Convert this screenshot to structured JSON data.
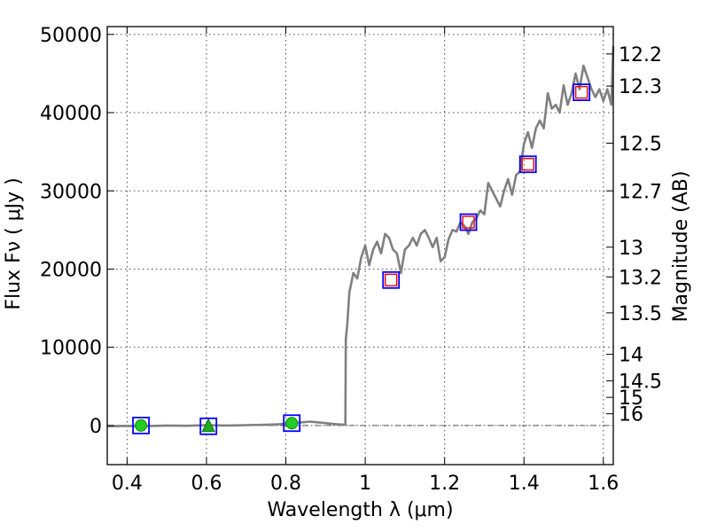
{
  "chart_data": {
    "type": "line",
    "xlabel": "Wavelength  λ (μm)",
    "ylabel": "Flux  Fν  ( μJy )",
    "y2label": "Magnitude (AB)",
    "xlim": [
      0.35,
      1.625
    ],
    "ylim": [
      -5000,
      51000
    ],
    "grid": true,
    "x_ticks": [
      0.4,
      0.6,
      0.8,
      1.0,
      1.2,
      1.4,
      1.6
    ],
    "x_tick_labels": [
      "0.4",
      "0.6",
      "0.8",
      "1",
      "1.2",
      "1.4",
      "1.6"
    ],
    "y_ticks": [
      0,
      10000,
      20000,
      30000,
      40000,
      50000
    ],
    "y_tick_labels": [
      "0",
      "10000",
      "20000",
      "30000",
      "40000",
      "50000"
    ],
    "y2_ticks": [
      {
        "label": "12.2",
        "flux": 47500
      },
      {
        "label": "12.3",
        "flux": 43400
      },
      {
        "label": "12.5",
        "flux": 36100
      },
      {
        "label": "12.7",
        "flux": 30000
      },
      {
        "label": "13",
        "flux": 22800
      },
      {
        "label": "13.2",
        "flux": 19000
      },
      {
        "label": "13.5",
        "flux": 14400
      },
      {
        "label": "14",
        "flux": 9100
      },
      {
        "label": "14.5",
        "flux": 5700
      },
      {
        "label": "15",
        "flux": 3600
      },
      {
        "label": "16",
        "flux": 1500
      }
    ],
    "series": [
      {
        "kind": "spectrum",
        "color": "#808080",
        "x": [
          0.35,
          0.4,
          0.45,
          0.5,
          0.55,
          0.6,
          0.65,
          0.7,
          0.75,
          0.78,
          0.82,
          0.86,
          0.9,
          0.93,
          0.95,
          0.951,
          0.955,
          0.96,
          0.97,
          0.98,
          0.99,
          1.0,
          1.01,
          1.02,
          1.03,
          1.04,
          1.05,
          1.06,
          1.07,
          1.08,
          1.09,
          1.1,
          1.11,
          1.12,
          1.13,
          1.14,
          1.15,
          1.16,
          1.17,
          1.18,
          1.19,
          1.2,
          1.21,
          1.22,
          1.23,
          1.24,
          1.25,
          1.26,
          1.27,
          1.28,
          1.29,
          1.3,
          1.31,
          1.32,
          1.33,
          1.34,
          1.35,
          1.36,
          1.37,
          1.38,
          1.39,
          1.4,
          1.41,
          1.42,
          1.43,
          1.44,
          1.45,
          1.46,
          1.47,
          1.48,
          1.49,
          1.5,
          1.51,
          1.52,
          1.53,
          1.54,
          1.55,
          1.56,
          1.57,
          1.58,
          1.59,
          1.6,
          1.61,
          1.62,
          1.625
        ],
        "y": [
          -100,
          -50,
          -80,
          0,
          -30,
          50,
          0,
          50,
          100,
          150,
          300,
          500,
          300,
          150,
          100,
          11000,
          13000,
          17000,
          19500,
          18800,
          21500,
          23000,
          20500,
          22500,
          23500,
          22000,
          24500,
          24000,
          22500,
          22000,
          19500,
          22500,
          23000,
          24000,
          23000,
          24500,
          25000,
          24000,
          22800,
          24000,
          21000,
          21500,
          23800,
          25000,
          24800,
          26000,
          25500,
          24500,
          26000,
          26500,
          27500,
          27000,
          31000,
          30000,
          29000,
          28000,
          30000,
          31500,
          29500,
          32000,
          32500,
          36000,
          37500,
          35500,
          38000,
          39000,
          38000,
          42500,
          40500,
          41000,
          40000,
          43500,
          41000,
          42500,
          45000,
          43000,
          46000,
          44500,
          43000,
          42000,
          43000,
          41500,
          43000,
          41000,
          48500
        ]
      },
      {
        "kind": "photometry",
        "points": [
          {
            "x": 0.435,
            "y": 0,
            "marker": "circle",
            "color": "#22cc22"
          },
          {
            "x": 0.605,
            "y": -100,
            "marker": "triangle",
            "color": "#22aa22"
          },
          {
            "x": 0.815,
            "y": 300,
            "marker": "circle",
            "color": "#22cc22"
          }
        ]
      },
      {
        "kind": "model-photometry",
        "marker": "open-square",
        "color": "#ff0000",
        "points": [
          {
            "x": 1.065,
            "y": 18600
          },
          {
            "x": 1.26,
            "y": 26000
          },
          {
            "x": 1.41,
            "y": 33400
          },
          {
            "x": 1.545,
            "y": 42600
          }
        ]
      },
      {
        "kind": "box-markers",
        "marker": "open-square",
        "color": "#0000ff",
        "points": [
          {
            "x": 0.435,
            "y": 0
          },
          {
            "x": 0.605,
            "y": -100
          },
          {
            "x": 0.815,
            "y": 300
          },
          {
            "x": 1.065,
            "y": 18600
          },
          {
            "x": 1.26,
            "y": 26000
          },
          {
            "x": 1.41,
            "y": 33400
          },
          {
            "x": 1.545,
            "y": 42600
          }
        ]
      }
    ]
  }
}
